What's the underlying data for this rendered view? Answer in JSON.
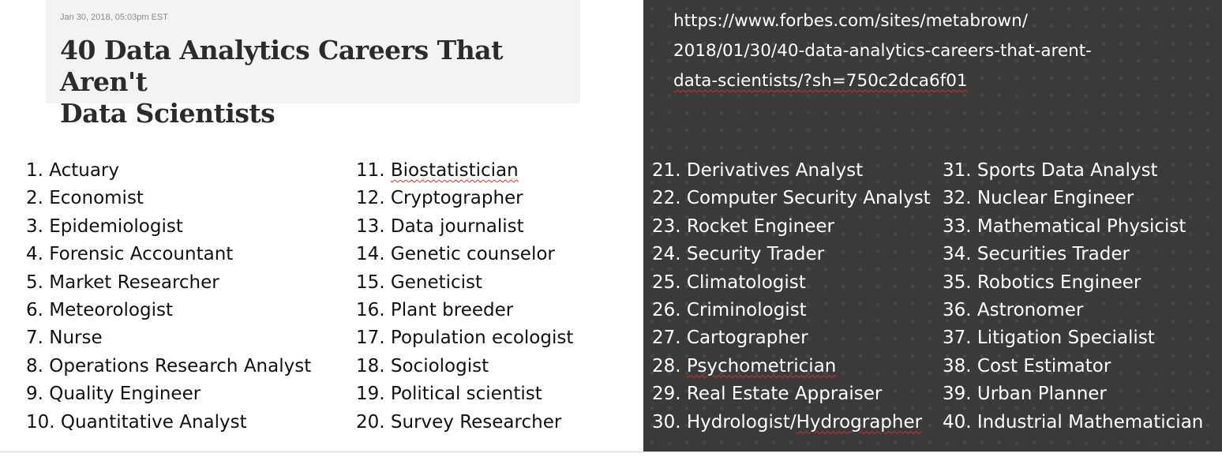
{
  "article": {
    "date": "Jan 30, 2018, 05:03pm EST",
    "title_line1": "40 Data Analytics Careers That Aren't",
    "title_line2": "Data Scientists"
  },
  "url": {
    "line1": "https://www.forbes.com/sites/metabrown/",
    "line2": "2018/01/30/40-data-analytics-careers-that-arent-",
    "line3": "data-scientists/?sh=750c2dca6f01"
  },
  "careers": {
    "col1": [
      "1. Actuary",
      "2. Economist",
      "3. Epidemiologist",
      "4. Forensic Accountant",
      "5. Market Researcher",
      "6. Meteorologist",
      "7. Nurse",
      "8. Operations Research Analyst",
      "9. Quality Engineer",
      "10. Quantitative Analyst"
    ],
    "col2": [
      "11. Biostatistician",
      "12. Cryptographer",
      "13. Data journalist",
      "14. Genetic counselor",
      "15. Geneticist",
      "16. Plant breeder",
      "17. Population ecologist",
      "18. Sociologist",
      "19. Political scientist",
      "20. Survey Researcher"
    ],
    "col3": [
      "21. Derivatives Analyst",
      "22. Computer Security Analyst",
      "23. Rocket Engineer",
      "24. Security Trader",
      "25. Climatologist",
      "26. Criminologist",
      "27. Cartographer",
      "28. Psychometrician",
      "29. Real Estate Appraiser",
      "30. Hydrologist/Hydrographer"
    ],
    "col4": [
      "31. Sports Data Analyst",
      "32. Nuclear Engineer",
      "33. Mathematical Physicist",
      "34. Securities Trader",
      "35. Robotics Engineer",
      "36. Astronomer",
      "37. Litigation Specialist",
      "38. Cost Estimator",
      "39. Urban Planner",
      "40. Industrial Mathematician"
    ]
  },
  "colors": {
    "left_background": "#ffffff",
    "right_background": "#3a3a3a",
    "card_background": "#f3f3f3",
    "title_text": "#2b2b2b",
    "spellcheck_underline": "#d03030"
  }
}
